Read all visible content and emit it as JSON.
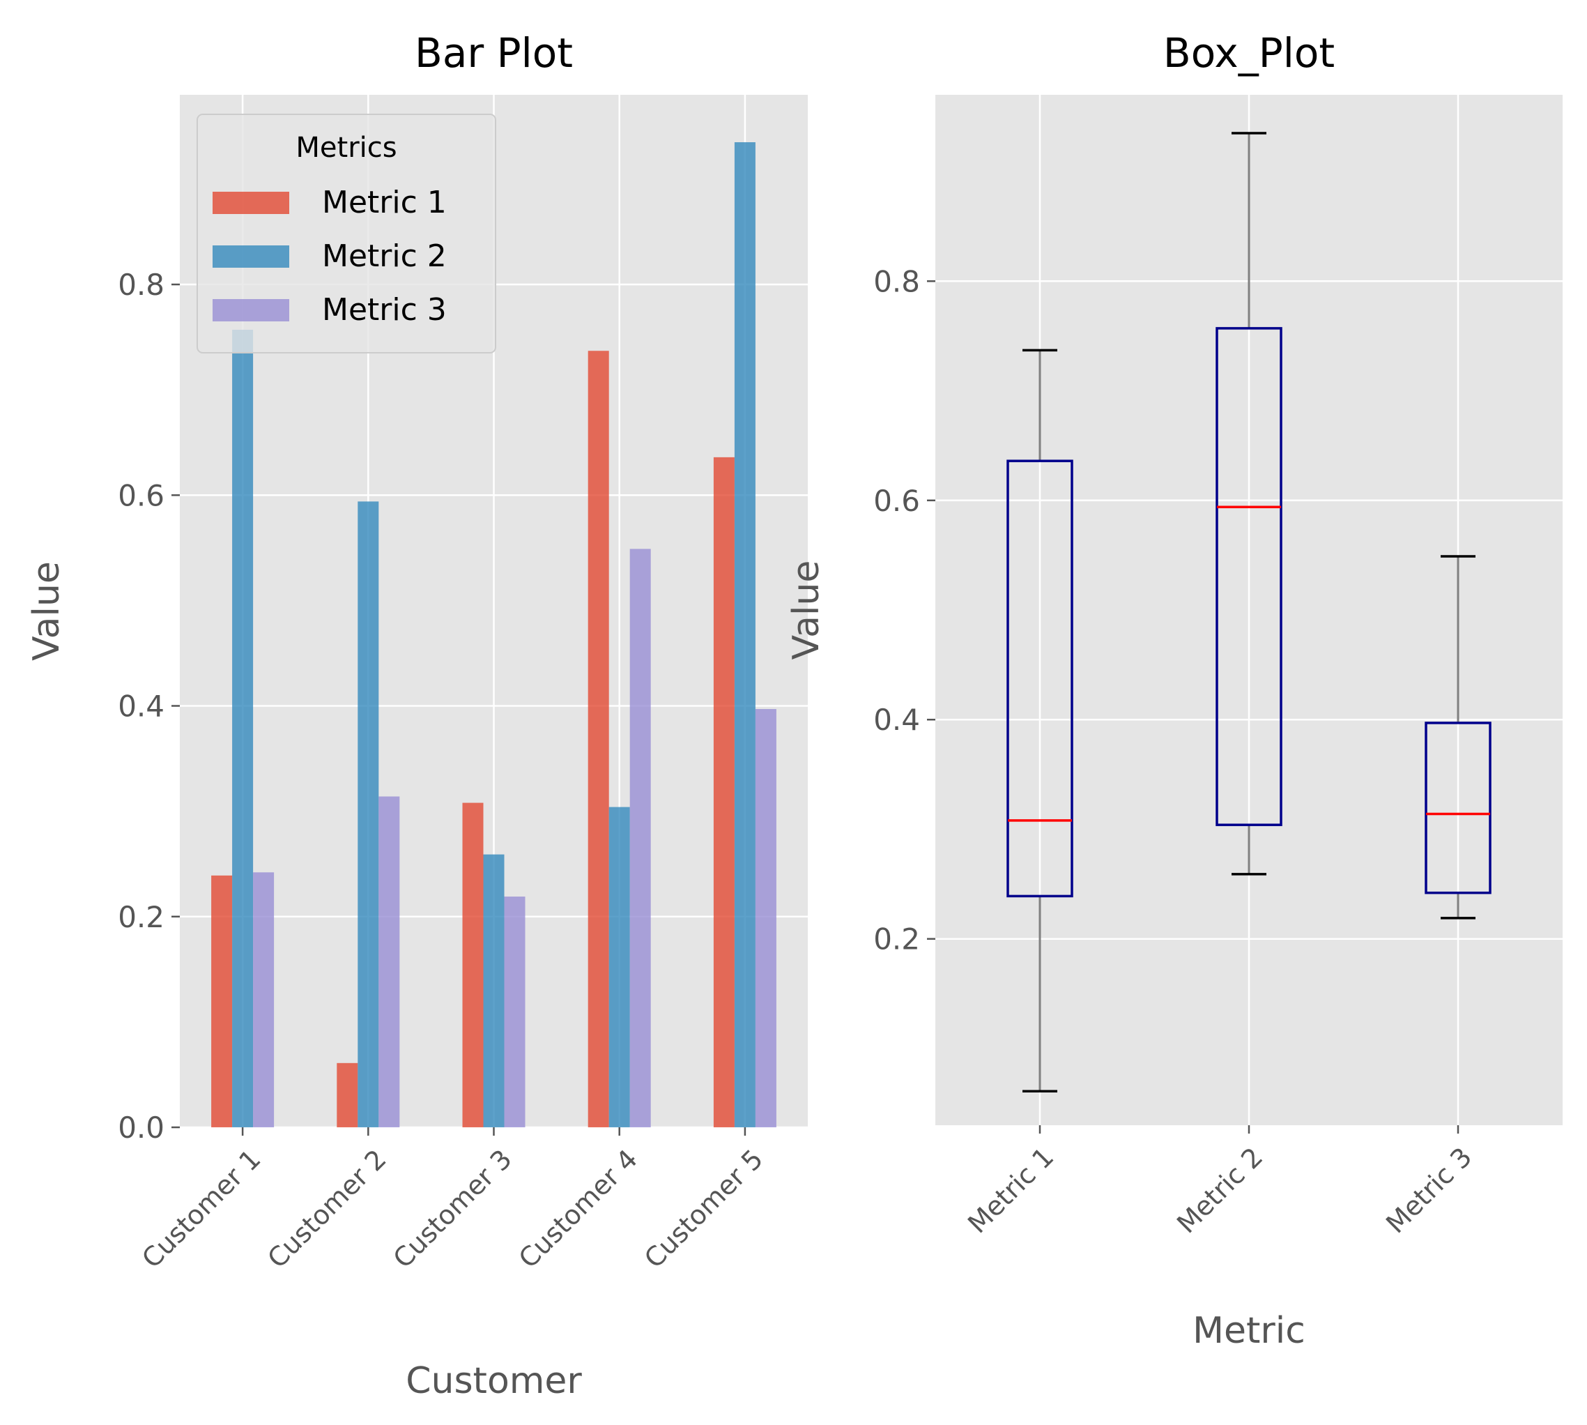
{
  "chart_data": [
    {
      "type": "bar",
      "title": "Bar Plot",
      "xlabel": "Customer",
      "ylabel": "Value",
      "categories": [
        "Customer 1",
        "Customer 2",
        "Customer 3",
        "Customer 4",
        "Customer 5"
      ],
      "series": [
        {
          "name": "Metric 1",
          "color": "#E24A33",
          "values": [
            0.239,
            0.061,
            0.308,
            0.737,
            0.636
          ]
        },
        {
          "name": "Metric 2",
          "color": "#348ABD",
          "values": [
            0.757,
            0.594,
            0.259,
            0.304,
            0.935
          ]
        },
        {
          "name": "Metric 3",
          "color": "#988ED5",
          "values": [
            0.242,
            0.314,
            0.219,
            0.549,
            0.397
          ]
        }
      ],
      "ylim": [
        0,
        0.98
      ],
      "yticks": [
        "0.0",
        "0.2",
        "0.4",
        "0.6",
        "0.8"
      ],
      "grid": true,
      "legend": {
        "title": "Metrics",
        "placement": "upper-left"
      }
    },
    {
      "type": "box",
      "title": "Box_Plot",
      "xlabel": "Metric",
      "ylabel": "Value",
      "categories": [
        "Metric 1",
        "Metric 2",
        "Metric 3"
      ],
      "boxes": [
        {
          "whisker_low": 0.061,
          "q1": 0.239,
          "median": 0.308,
          "q3": 0.636,
          "whisker_high": 0.737
        },
        {
          "whisker_low": 0.259,
          "q1": 0.304,
          "median": 0.594,
          "q3": 0.757,
          "whisker_high": 0.935
        },
        {
          "whisker_low": 0.219,
          "q1": 0.242,
          "median": 0.314,
          "q3": 0.397,
          "whisker_high": 0.549
        }
      ],
      "ylim": [
        0.03,
        0.97
      ],
      "yticks": [
        "0.2",
        "0.4",
        "0.6",
        "0.8"
      ],
      "grid": true,
      "colors": {
        "box": "#00008B",
        "median": "#FF0000",
        "whisker": "#808080",
        "cap": "#000000"
      }
    }
  ]
}
